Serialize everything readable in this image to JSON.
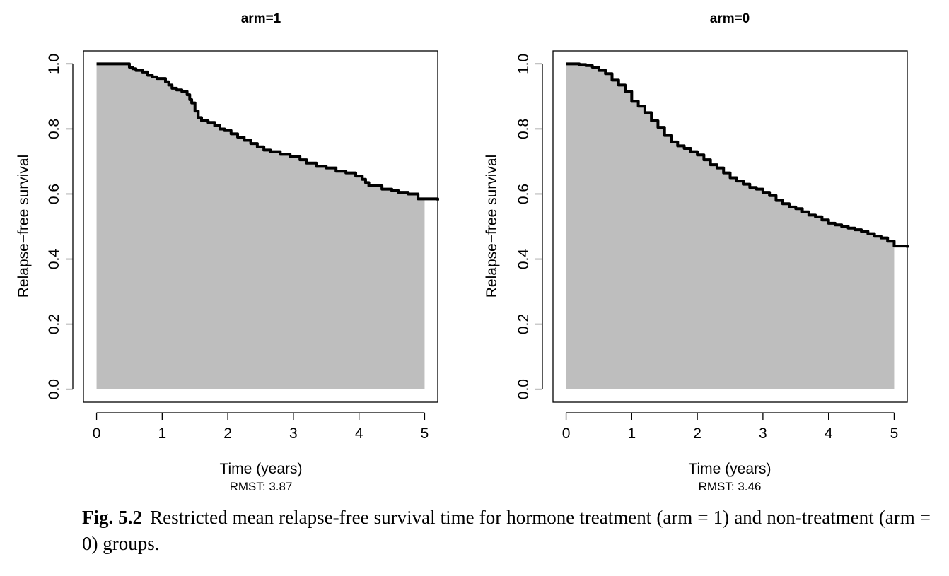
{
  "chart_data": [
    {
      "type": "area",
      "title": "arm=1",
      "xlabel": "Time (years)",
      "ylabel": "Relapse−free survival",
      "note": "RMST: 3.87",
      "xlim": [
        -0.2,
        5.2
      ],
      "ylim": [
        -0.04,
        1.04
      ],
      "xticks": [
        0,
        1,
        2,
        3,
        4,
        5
      ],
      "yticks": [
        "0.0",
        "0.2",
        "0.4",
        "0.6",
        "0.8",
        "1.0"
      ],
      "grid": false,
      "colors": {
        "fill": "#bebebe",
        "line": "#000000"
      },
      "tau": 5,
      "x": [
        0,
        0.48,
        0.5,
        0.55,
        0.6,
        0.7,
        0.78,
        0.85,
        0.92,
        1.0,
        1.05,
        1.1,
        1.15,
        1.22,
        1.3,
        1.38,
        1.42,
        1.45,
        1.5,
        1.55,
        1.6,
        1.7,
        1.8,
        1.88,
        1.95,
        2.05,
        2.15,
        2.25,
        2.35,
        2.45,
        2.55,
        2.65,
        2.8,
        2.95,
        3.1,
        3.2,
        3.35,
        3.5,
        3.65,
        3.8,
        3.95,
        4.05,
        4.1,
        4.15,
        4.35,
        4.5,
        4.6,
        4.75,
        4.9,
        5.2
      ],
      "y": [
        1.0,
        1.0,
        0.99,
        0.985,
        0.98,
        0.975,
        0.965,
        0.96,
        0.955,
        0.955,
        0.945,
        0.935,
        0.925,
        0.92,
        0.915,
        0.905,
        0.89,
        0.88,
        0.855,
        0.835,
        0.825,
        0.82,
        0.81,
        0.8,
        0.795,
        0.785,
        0.775,
        0.765,
        0.755,
        0.745,
        0.735,
        0.73,
        0.722,
        0.715,
        0.705,
        0.695,
        0.685,
        0.68,
        0.67,
        0.665,
        0.655,
        0.645,
        0.635,
        0.625,
        0.615,
        0.61,
        0.605,
        0.6,
        0.585,
        0.58
      ]
    },
    {
      "type": "area",
      "title": "arm=0",
      "xlabel": "Time (years)",
      "ylabel": "Relapse−free survival",
      "note": "RMST: 3.46",
      "xlim": [
        -0.2,
        5.2
      ],
      "ylim": [
        -0.04,
        1.04
      ],
      "xticks": [
        0,
        1,
        2,
        3,
        4,
        5
      ],
      "yticks": [
        "0.0",
        "0.2",
        "0.4",
        "0.6",
        "0.8",
        "1.0"
      ],
      "grid": false,
      "colors": {
        "fill": "#bebebe",
        "line": "#000000"
      },
      "tau": 5,
      "x": [
        0,
        0.2,
        0.3,
        0.4,
        0.5,
        0.6,
        0.7,
        0.8,
        0.9,
        1.0,
        1.1,
        1.2,
        1.3,
        1.4,
        1.5,
        1.6,
        1.7,
        1.8,
        1.9,
        2.0,
        2.1,
        2.2,
        2.3,
        2.4,
        2.5,
        2.6,
        2.7,
        2.8,
        2.9,
        3.0,
        3.1,
        3.2,
        3.3,
        3.4,
        3.5,
        3.6,
        3.7,
        3.8,
        3.9,
        4.0,
        4.1,
        4.2,
        4.3,
        4.4,
        4.5,
        4.6,
        4.7,
        4.8,
        4.9,
        5.0,
        5.2
      ],
      "y": [
        1.0,
        0.998,
        0.995,
        0.99,
        0.98,
        0.97,
        0.95,
        0.935,
        0.915,
        0.885,
        0.87,
        0.85,
        0.825,
        0.805,
        0.78,
        0.76,
        0.748,
        0.74,
        0.73,
        0.72,
        0.705,
        0.69,
        0.68,
        0.665,
        0.65,
        0.64,
        0.63,
        0.62,
        0.615,
        0.605,
        0.595,
        0.58,
        0.57,
        0.56,
        0.555,
        0.545,
        0.535,
        0.53,
        0.52,
        0.51,
        0.505,
        0.5,
        0.495,
        0.49,
        0.485,
        0.478,
        0.47,
        0.465,
        0.455,
        0.44,
        0.435
      ]
    }
  ],
  "caption": {
    "label": "Fig. 5.2",
    "text": "Restricted mean relapse-free survival time for hormone treatment (arm = 1) and non-treatment (arm = 0) groups."
  }
}
